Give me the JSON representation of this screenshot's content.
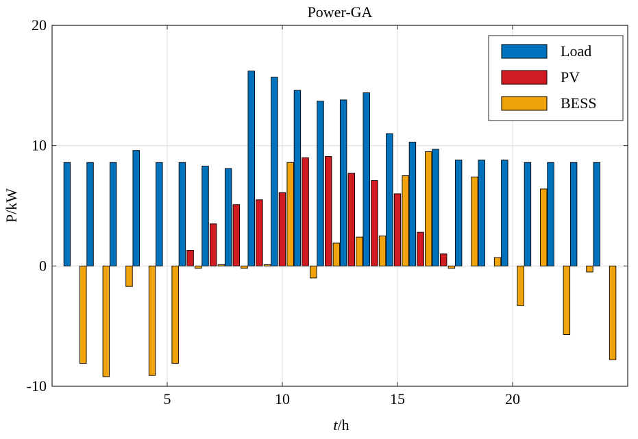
{
  "chart_data": {
    "type": "bar",
    "title": "Power-GA",
    "xlabel_italic": "t",
    "xlabel_rest": "/h",
    "ylabel": "P/kW",
    "xlim": [
      0,
      25
    ],
    "ylim": [
      -10,
      20
    ],
    "xticks": [
      5,
      10,
      15,
      20
    ],
    "yticks": [
      -10,
      0,
      10,
      20
    ],
    "grid": true,
    "legend_position": "top-right",
    "x": [
      1,
      2,
      3,
      4,
      5,
      6,
      7,
      8,
      9,
      10,
      11,
      12,
      13,
      14,
      15,
      16,
      17,
      18,
      19,
      20,
      21,
      22,
      23,
      24
    ],
    "series": [
      {
        "name": "Load",
        "color": "#0072BD",
        "values": [
          8.6,
          8.6,
          8.6,
          9.6,
          8.6,
          8.6,
          8.3,
          8.1,
          16.2,
          15.7,
          14.6,
          13.7,
          13.8,
          14.4,
          11.0,
          10.3,
          9.7,
          8.8,
          8.8,
          8.8,
          8.6,
          8.6,
          8.6,
          8.6
        ]
      },
      {
        "name": "PV",
        "color": "#D01B22",
        "values": [
          0,
          0,
          0,
          0,
          0,
          1.3,
          3.5,
          5.1,
          5.5,
          6.1,
          9.0,
          9.1,
          7.7,
          7.1,
          6.0,
          2.8,
          1.0,
          0,
          0,
          0,
          0,
          0,
          0,
          0
        ]
      },
      {
        "name": "BESS",
        "color": "#F0A30A",
        "values": [
          -8.1,
          -9.2,
          -1.7,
          -9.1,
          -8.1,
          -0.2,
          0.1,
          -0.2,
          0.1,
          8.6,
          -1.0,
          1.9,
          2.4,
          2.5,
          7.5,
          9.5,
          -0.2,
          7.4,
          0.7,
          -3.3,
          6.4,
          -5.7,
          -0.5,
          -7.8
        ]
      }
    ]
  }
}
